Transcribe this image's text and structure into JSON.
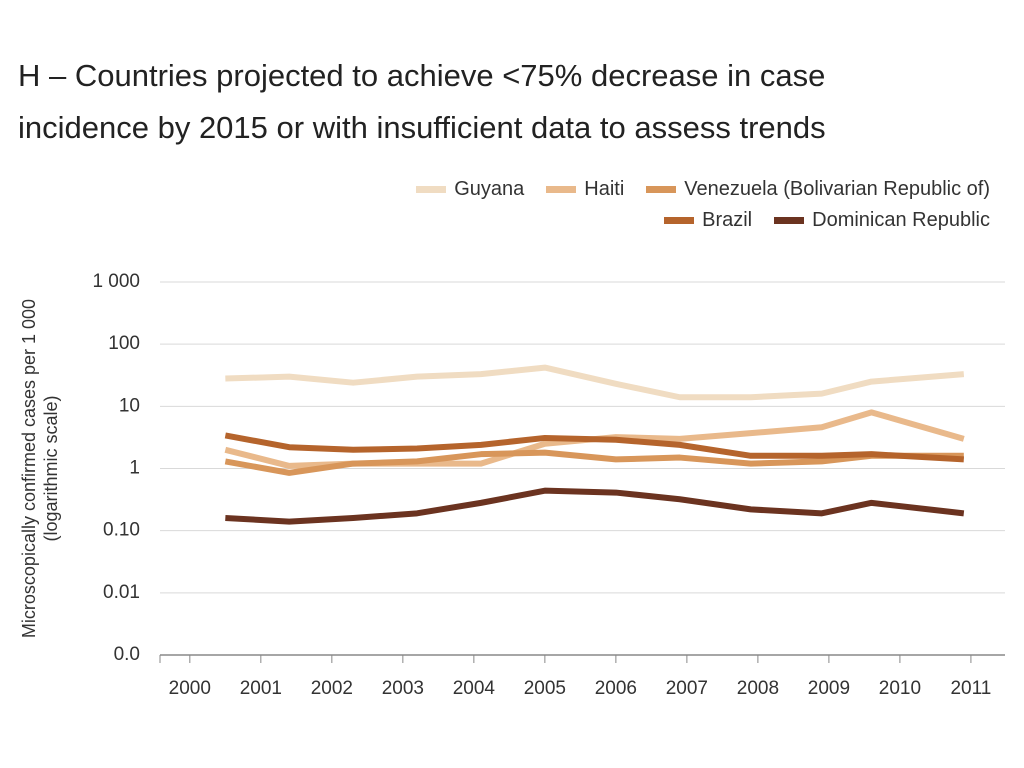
{
  "chart_data": {
    "type": "line",
    "title": "H – Countries projected to achieve <75% decrease in case incidence by 2015 or with insufficient data to assess trends",
    "ylabel": [
      "Microscopically confirmed cases per 1 000",
      "(logarithmic scale)"
    ],
    "xticks": [
      2000,
      2001,
      2002,
      2003,
      2004,
      2005,
      2006,
      2007,
      2008,
      2009,
      2010,
      2011
    ],
    "xlim": [
      1999.58,
      2011.48
    ],
    "x": [
      2000.5,
      2001.4,
      2002.3,
      2003.2,
      2004.1,
      2005,
      2006,
      2006.9,
      2007.9,
      2008.9,
      2009.6,
      2010.9
    ],
    "ylim": [
      0.001,
      1000
    ],
    "log_y": true,
    "grid": true,
    "yticks": [
      {
        "value": 0.001,
        "label": "0.0"
      },
      0.01,
      {
        "value": 0.1,
        "label": "0.10"
      },
      1,
      10,
      100,
      {
        "value": 1000,
        "label": "1 000"
      }
    ],
    "series": [
      {
        "name": "Guyana",
        "color": "#f0dcc2",
        "values": [
          28,
          30,
          24,
          30,
          33,
          42,
          23,
          14,
          14,
          16,
          25,
          33
        ]
      },
      {
        "name": "Haiti",
        "color": "#e9b98b",
        "values": [
          2,
          1.1,
          1.2,
          1.2,
          1.2,
          2.5,
          3.2,
          3,
          3.7,
          4.6,
          8,
          3
        ]
      },
      {
        "name": "Venezuela (Bolivarian Republic of)",
        "color": "#d8965a",
        "values": [
          1.3,
          0.85,
          1.2,
          1.3,
          1.7,
          1.8,
          1.4,
          1.5,
          1.2,
          1.3,
          1.6,
          1.6
        ]
      },
      {
        "name": "Brazil",
        "color": "#b5642c",
        "values": [
          3.4,
          2.2,
          2,
          2.1,
          2.4,
          3.1,
          2.9,
          2.4,
          1.6,
          1.6,
          1.7,
          1.4
        ]
      },
      {
        "name": "Dominican Republic",
        "color": "#6b3320",
        "values": [
          0.16,
          0.14,
          0.16,
          0.19,
          0.28,
          0.44,
          0.41,
          0.32,
          0.22,
          0.19,
          0.28,
          0.19
        ]
      }
    ]
  }
}
